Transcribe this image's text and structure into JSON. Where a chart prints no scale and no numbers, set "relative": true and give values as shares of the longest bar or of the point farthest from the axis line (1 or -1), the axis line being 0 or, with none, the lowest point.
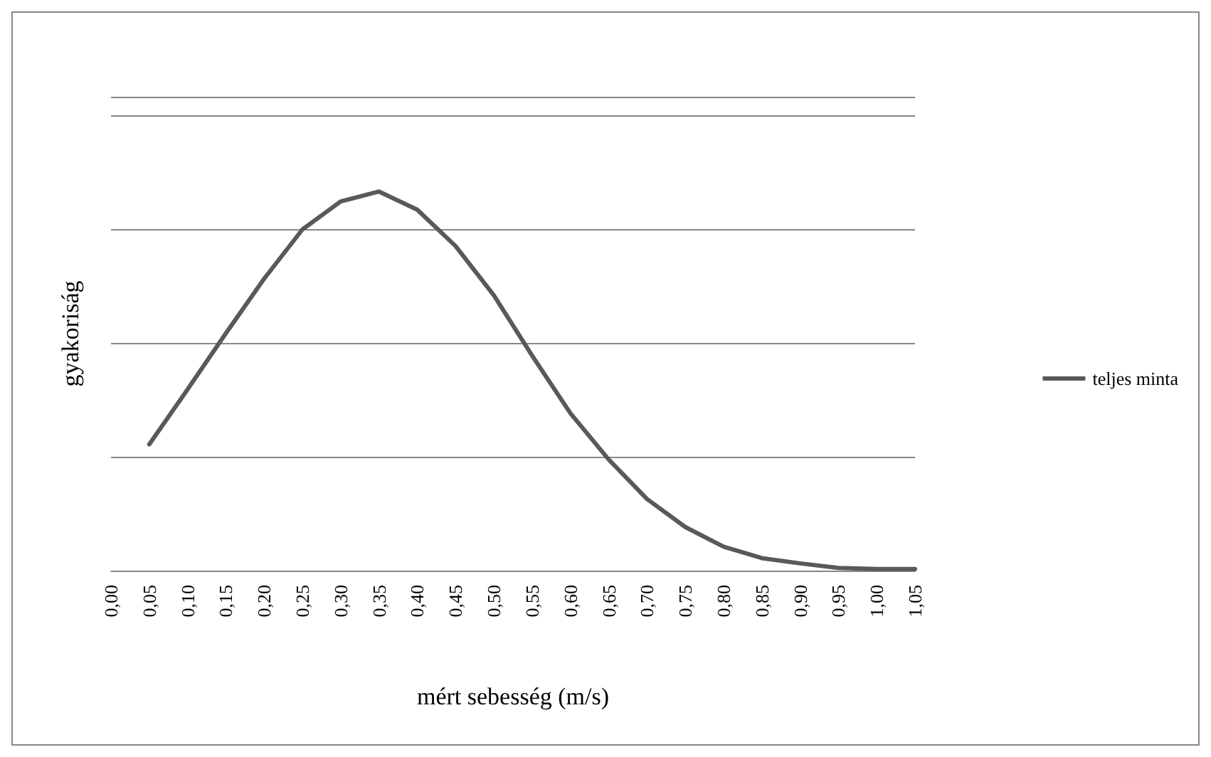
{
  "chart_data": {
    "type": "line",
    "relative": true,
    "xlabel": "mért sebesség (m/s)",
    "ylabel": "gyakoriság",
    "categories": [
      "0,00",
      "0,05",
      "0,10",
      "0,15",
      "0,20",
      "0,25",
      "0,30",
      "0,35",
      "0,40",
      "0,45",
      "0,50",
      "0,55",
      "0,60",
      "0,65",
      "0,70",
      "0,75",
      "0,80",
      "0,85",
      "0,90",
      "0,95",
      "1,00",
      "1,05"
    ],
    "series": [
      {
        "name": "teljes minta",
        "color": "#595959",
        "values": [
          null,
          0.333,
          0.478,
          0.626,
          0.77,
          0.9,
          0.974,
          1,
          0.952,
          0.856,
          0.726,
          0.567,
          0.415,
          0.293,
          0.189,
          0.115,
          0.063,
          0.033,
          0.019,
          0.007,
          0.004,
          0.004
        ]
      }
    ],
    "grid": "y",
    "legend": "right",
    "marker": "none",
    "line_style": "solid"
  }
}
